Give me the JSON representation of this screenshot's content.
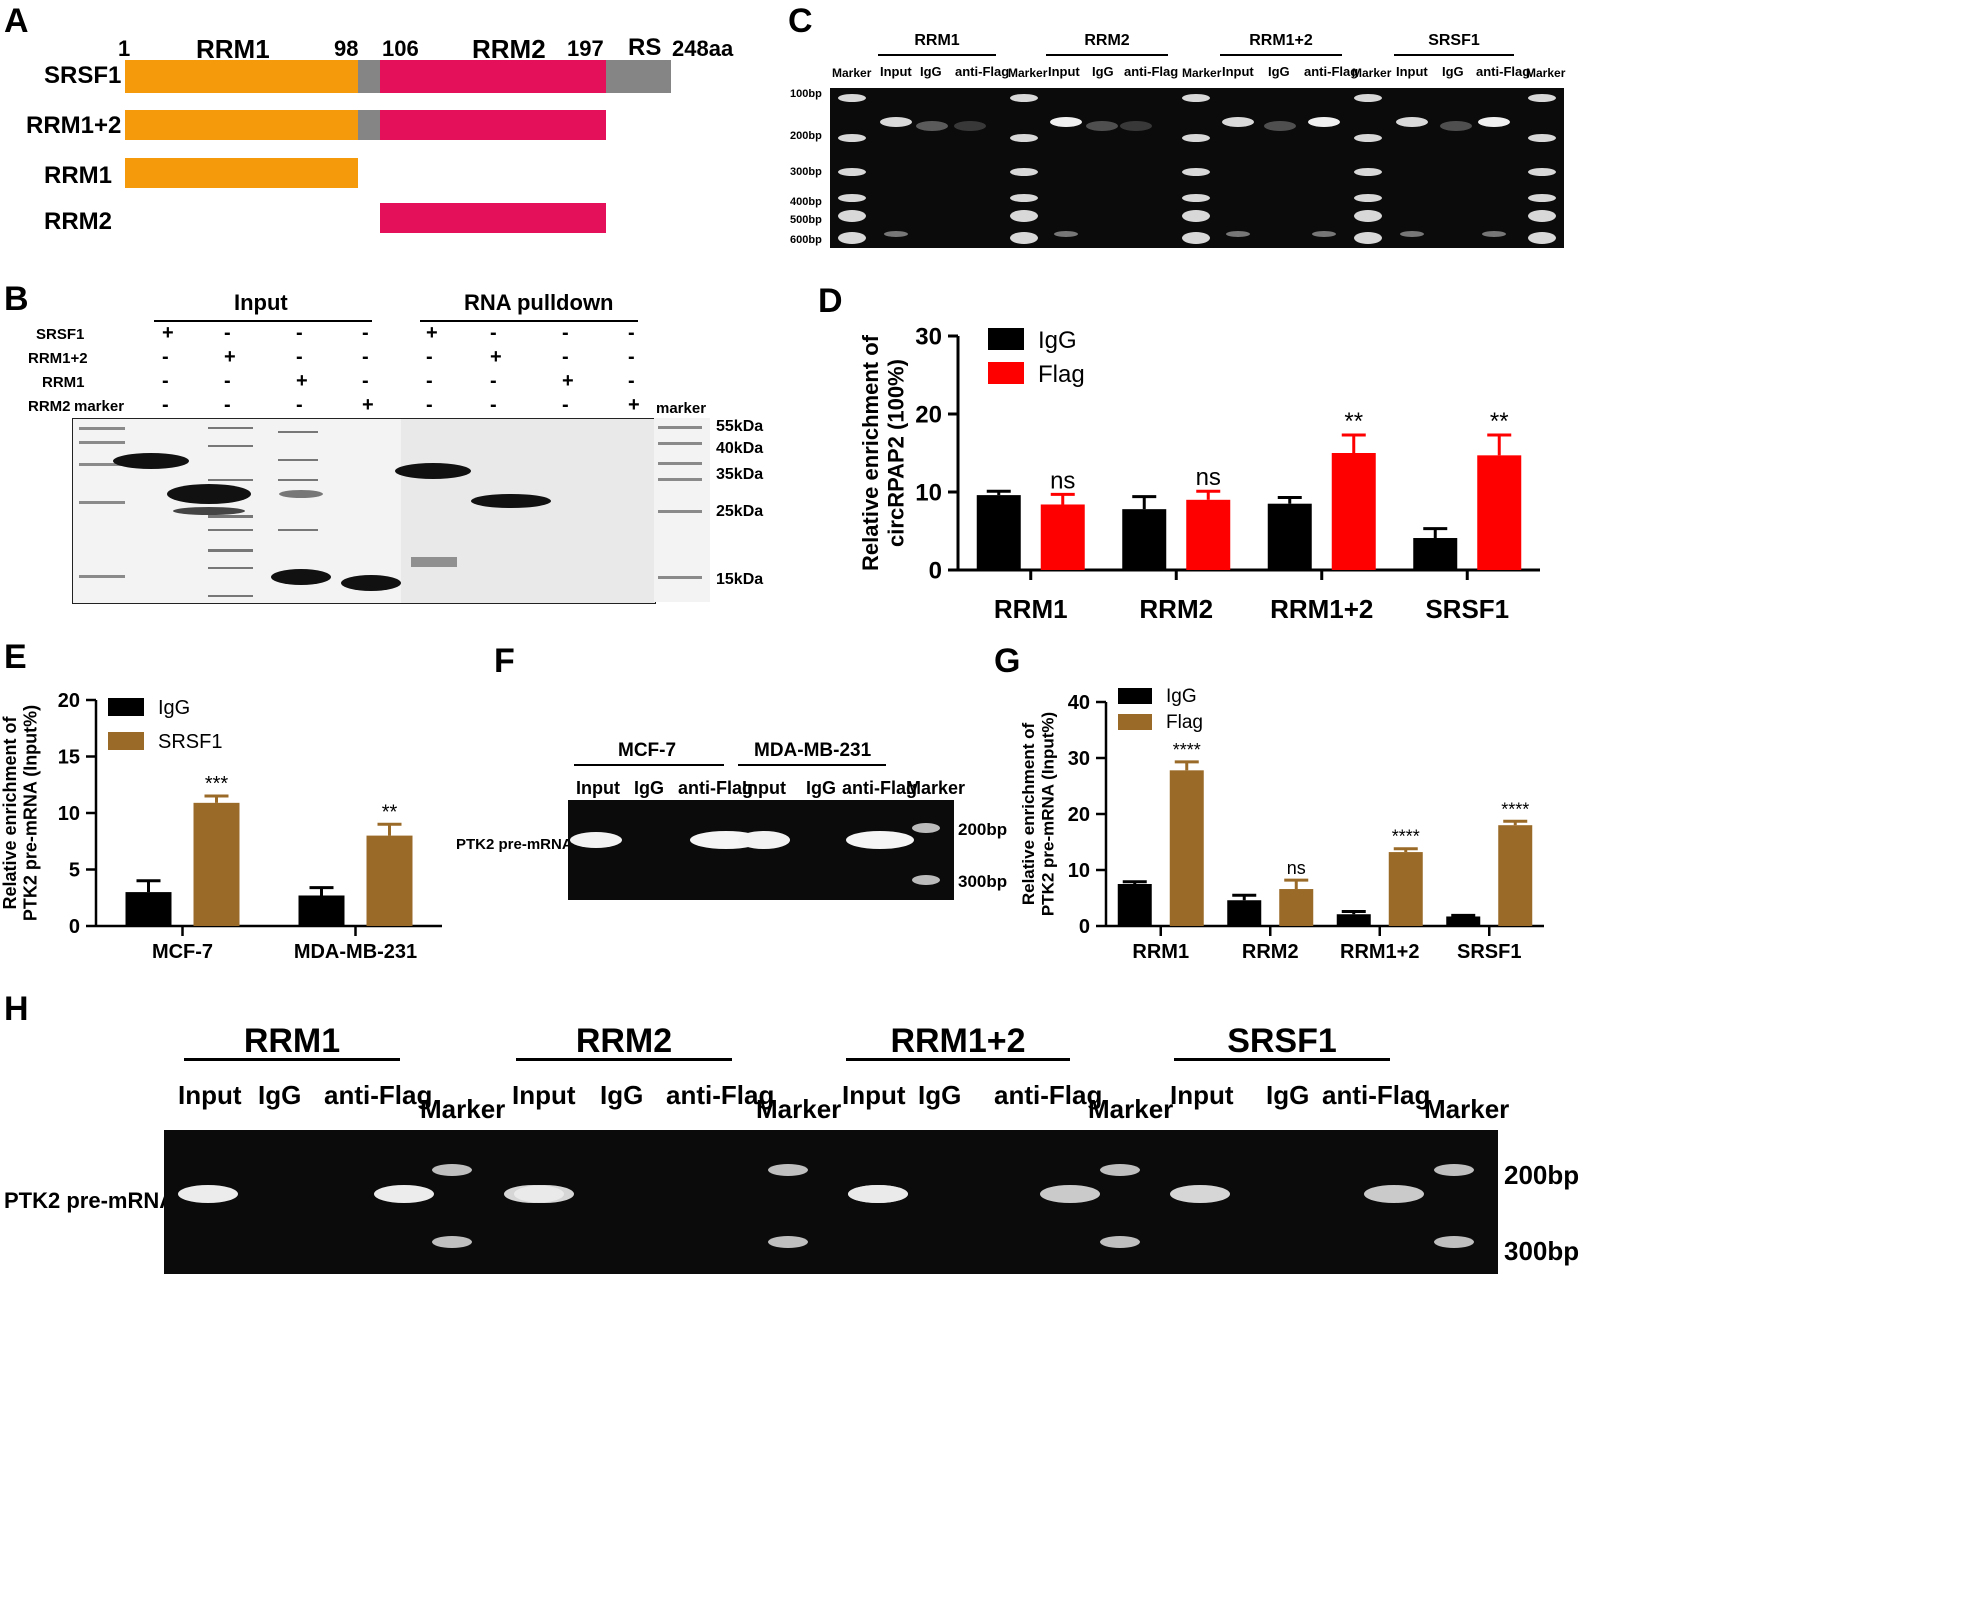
{
  "panels": {
    "A": "A",
    "B": "B",
    "C": "C",
    "D": "D",
    "E": "E",
    "F": "F",
    "G": "G",
    "H": "H"
  },
  "panelA": {
    "positions": {
      "p1": "1",
      "p98": "98",
      "p106": "106",
      "p197": "197",
      "p248": "248aa"
    },
    "domains": {
      "rrm1": "RRM1",
      "rrm2": "RRM2",
      "rs": "RS"
    },
    "constructs": [
      "SRSF1",
      "RRM1+2",
      "RRM1",
      "RRM2"
    ],
    "colors": {
      "rrm1": "#f59a0b",
      "rrm2": "#e5105a",
      "linker": "#858585"
    }
  },
  "panelB": {
    "group_input": "Input",
    "group_pulldown": "RNA pulldown",
    "row_labels": [
      "SRSF1",
      "RRM1+2",
      "RRM1",
      "RRM2"
    ],
    "marker_left": "marker",
    "marker_right": "marker",
    "lane_signs": [
      [
        "+",
        "-",
        "-",
        "-",
        "+",
        "-",
        "-",
        "-"
      ],
      [
        "-",
        "+",
        "-",
        "-",
        "-",
        "+",
        "-",
        "-"
      ],
      [
        "-",
        "-",
        "+",
        "-",
        "-",
        "-",
        "+",
        "-"
      ],
      [
        "-",
        "-",
        "-",
        "+",
        "-",
        "-",
        "-",
        "+"
      ]
    ],
    "size_labels": [
      "55kDa",
      "40kDa",
      "35kDa",
      "25kDa",
      "15kDa"
    ]
  },
  "panelC": {
    "groups": [
      "RRM1",
      "RRM2",
      "RRM1+2",
      "SRSF1"
    ],
    "lanes": [
      "Input",
      "IgG",
      "anti-Flag"
    ],
    "marker": "Marker",
    "bp_labels": [
      "100bp",
      "200bp",
      "300bp",
      "400bp",
      "500bp",
      "600bp"
    ]
  },
  "panelF": {
    "groups": [
      "MCF-7",
      "MDA-MB-231"
    ],
    "lanes": [
      "Input",
      "IgG",
      "anti-Flag",
      "Input",
      "IgG",
      "anti-Flag",
      "Marker"
    ],
    "row_label": "PTK2 pre-mRNA",
    "bp_labels": [
      "200bp",
      "300bp"
    ]
  },
  "panelH": {
    "groups": [
      "RRM1",
      "RRM2",
      "RRM1+2",
      "SRSF1"
    ],
    "lanes": [
      "Input",
      "IgG",
      "anti-Flag"
    ],
    "marker": "Marker",
    "row_label": "PTK2 pre-mRNA",
    "bp_labels": [
      "200bp",
      "300bp"
    ]
  },
  "chart_data": [
    {
      "panel": "D",
      "type": "bar",
      "categories": [
        "RRM1",
        "RRM2",
        "RRM1+2",
        "SRSF1"
      ],
      "series": [
        {
          "name": "IgG",
          "color": "#000000",
          "values": [
            9.6,
            7.8,
            8.5,
            4.1
          ],
          "errors": [
            0.5,
            1.6,
            0.8,
            1.2
          ]
        },
        {
          "name": "Flag",
          "color": "#ff0000",
          "values": [
            8.4,
            9.0,
            15.0,
            14.7
          ],
          "errors": [
            1.3,
            1.1,
            2.3,
            2.6
          ]
        }
      ],
      "significance": [
        "ns",
        "ns",
        "**",
        "**"
      ],
      "ylabel": "Relative enrichment of circRPAP2 (100%)",
      "xlabel": "",
      "ylim": [
        0,
        30
      ],
      "yticks": [
        0,
        10,
        20,
        30
      ],
      "legend": "top-left"
    },
    {
      "panel": "E",
      "type": "bar",
      "categories": [
        "MCF-7",
        "MDA-MB-231"
      ],
      "series": [
        {
          "name": "IgG",
          "color": "#000000",
          "values": [
            3.0,
            2.7
          ],
          "errors": [
            1.0,
            0.7
          ]
        },
        {
          "name": "SRSF1",
          "color": "#9a6a28",
          "values": [
            10.9,
            8.0
          ],
          "errors": [
            0.6,
            1.0
          ]
        }
      ],
      "significance": [
        "***",
        "**"
      ],
      "ylabel": "Relative enrichment of PTK2 pre-mRNA  (Input%)",
      "xlabel": "",
      "ylim": [
        0,
        20
      ],
      "yticks": [
        0,
        5,
        10,
        15,
        20
      ],
      "legend": "top-left"
    },
    {
      "panel": "G",
      "type": "bar",
      "categories": [
        "RRM1",
        "RRM2",
        "RRM1+2",
        "SRSF1"
      ],
      "series": [
        {
          "name": "IgG",
          "color": "#000000",
          "values": [
            7.5,
            4.6,
            2.1,
            1.7
          ],
          "errors": [
            0.4,
            0.9,
            0.5,
            0.2
          ]
        },
        {
          "name": "Flag",
          "color": "#9a6a28",
          "values": [
            27.8,
            6.6,
            13.2,
            18.0
          ],
          "errors": [
            1.5,
            1.6,
            0.6,
            0.7
          ]
        }
      ],
      "significance": [
        "****",
        "ns",
        "****",
        "****"
      ],
      "ylabel": "Relative enrichment of PTK2 pre-mRNA  (Input%)",
      "xlabel": "",
      "ylim": [
        0,
        40
      ],
      "yticks": [
        0,
        10,
        20,
        30,
        40
      ],
      "legend": "top-left"
    }
  ]
}
